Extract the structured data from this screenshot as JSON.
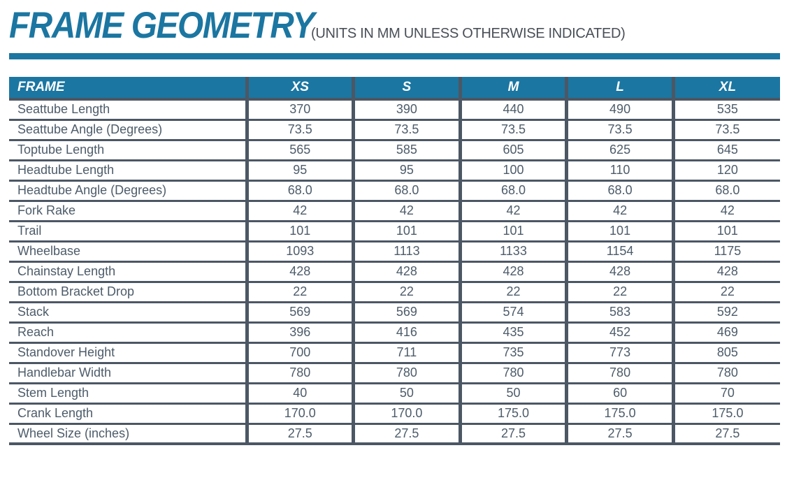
{
  "header": {
    "title": "FRAME GEOMETRY",
    "subtitle": "(UNITS IN MM UNLESS OTHERWISE INDICATED)"
  },
  "colors": {
    "accent_teal": "#1B76A1",
    "grid_border": "#4C5765",
    "body_text": "#4D5C6A",
    "subtitle_text": "#494F57",
    "header_text": "#FFFFFF"
  },
  "chart_data": {
    "type": "table",
    "title": "FRAME GEOMETRY",
    "units_note": "(UNITS IN MM UNLESS OTHERWISE INDICATED)",
    "columns": [
      "FRAME",
      "XS",
      "S",
      "M",
      "L",
      "XL"
    ],
    "rows": [
      {
        "label": "Seattube Length",
        "values": [
          "370",
          "390",
          "440",
          "490",
          "535"
        ]
      },
      {
        "label": "Seattube Angle (Degrees)",
        "values": [
          "73.5",
          "73.5",
          "73.5",
          "73.5",
          "73.5"
        ]
      },
      {
        "label": "Toptube Length",
        "values": [
          "565",
          "585",
          "605",
          "625",
          "645"
        ]
      },
      {
        "label": "Headtube Length",
        "values": [
          "95",
          "95",
          "100",
          "110",
          "120"
        ]
      },
      {
        "label": "Headtube Angle (Degrees)",
        "values": [
          "68.0",
          "68.0",
          "68.0",
          "68.0",
          "68.0"
        ]
      },
      {
        "label": "Fork Rake",
        "values": [
          "42",
          "42",
          "42",
          "42",
          "42"
        ]
      },
      {
        "label": "Trail",
        "values": [
          "101",
          "101",
          "101",
          "101",
          "101"
        ]
      },
      {
        "label": "Wheelbase",
        "values": [
          "1093",
          "1113",
          "1133",
          "1154",
          "1175"
        ]
      },
      {
        "label": "Chainstay Length",
        "values": [
          "428",
          "428",
          "428",
          "428",
          "428"
        ]
      },
      {
        "label": "Bottom Bracket Drop",
        "values": [
          "22",
          "22",
          "22",
          "22",
          "22"
        ]
      },
      {
        "label": "Stack",
        "values": [
          "569",
          "569",
          "574",
          "583",
          "592"
        ]
      },
      {
        "label": "Reach",
        "values": [
          "396",
          "416",
          "435",
          "452",
          "469"
        ]
      },
      {
        "label": "Standover Height",
        "values": [
          "700",
          "711",
          "735",
          "773",
          "805"
        ]
      },
      {
        "label": "Handlebar Width",
        "values": [
          "780",
          "780",
          "780",
          "780",
          "780"
        ]
      },
      {
        "label": "Stem Length",
        "values": [
          "40",
          "50",
          "50",
          "60",
          "70"
        ]
      },
      {
        "label": "Crank Length",
        "values": [
          "170.0",
          "170.0",
          "175.0",
          "175.0",
          "175.0"
        ]
      },
      {
        "label": "Wheel Size (inches)",
        "values": [
          "27.5",
          "27.5",
          "27.5",
          "27.5",
          "27.5"
        ]
      }
    ]
  }
}
